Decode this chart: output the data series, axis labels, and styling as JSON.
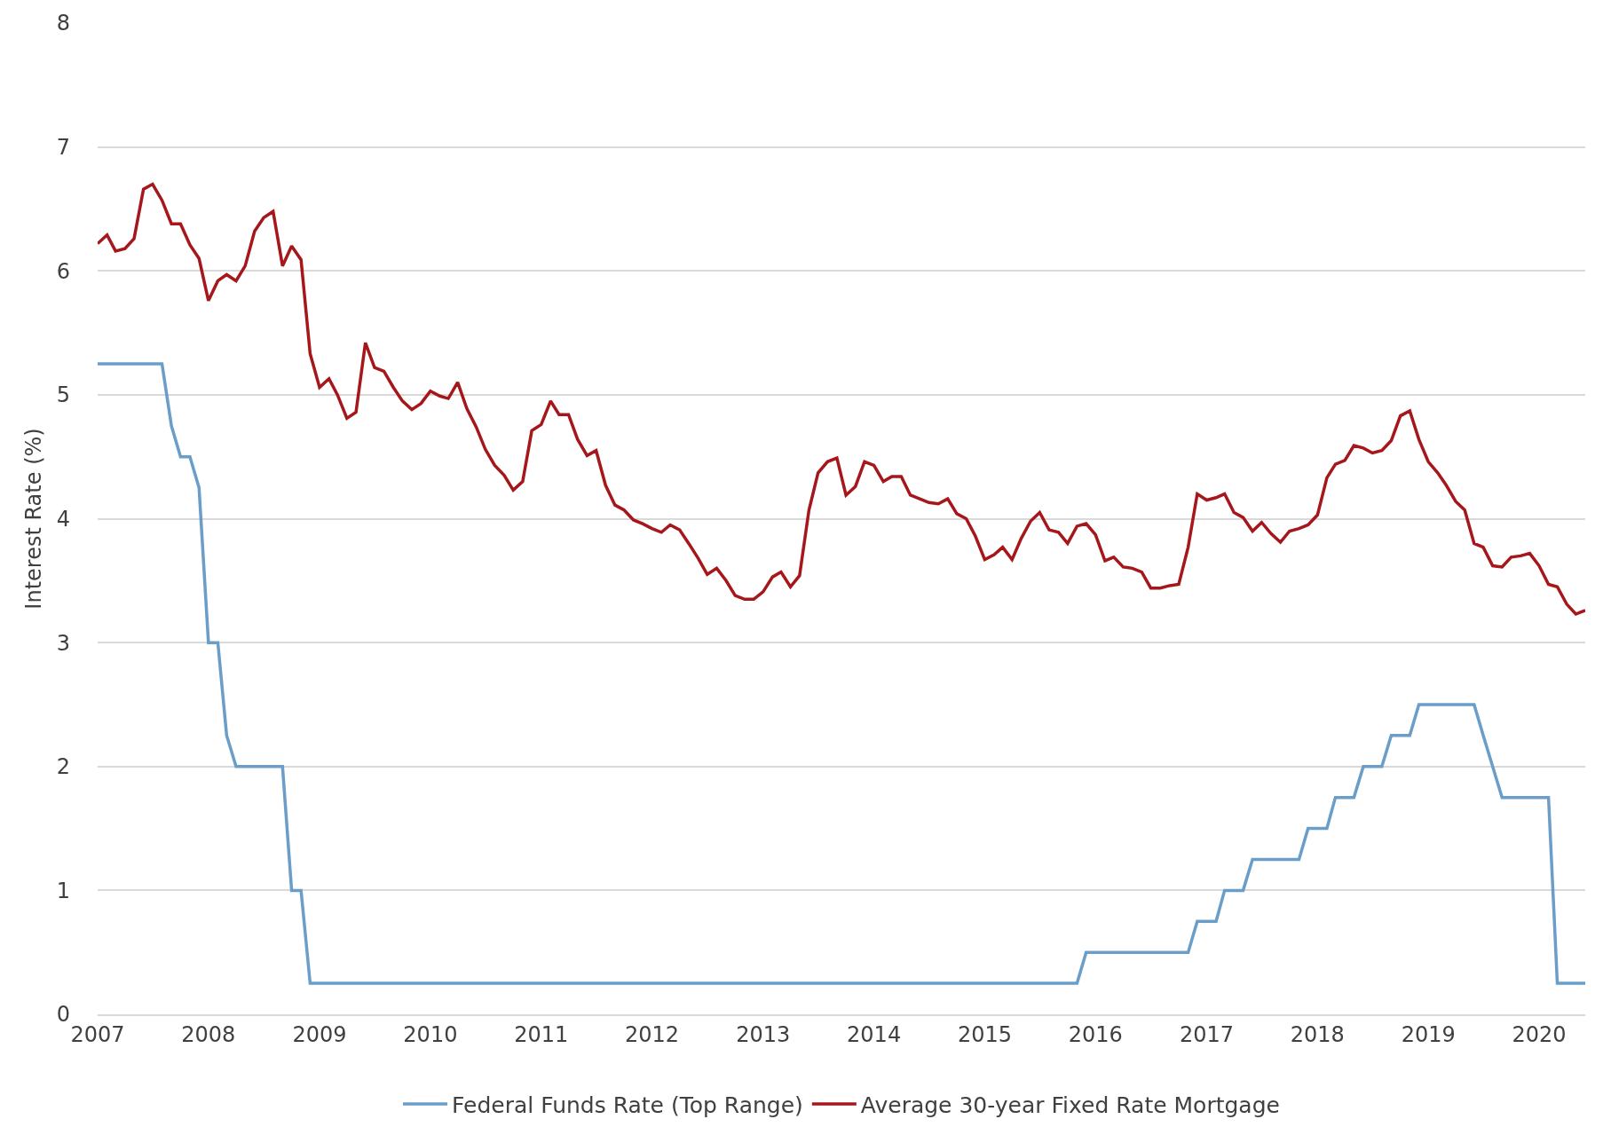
{
  "chart_data": {
    "type": "line",
    "ylabel": "Interest Rate (%)",
    "xlim": [
      "2007-01",
      "2020-06"
    ],
    "ylim": [
      0,
      8
    ],
    "yticks": [
      0,
      1,
      2,
      3,
      4,
      5,
      6,
      7,
      8
    ],
    "xticks": [
      {
        "value": "2007",
        "label": "2007"
      },
      {
        "value": "2008",
        "label": "2008"
      },
      {
        "value": "2009",
        "label": "2009"
      },
      {
        "value": "2010",
        "label": "2010"
      },
      {
        "value": "2011",
        "label": "2011"
      },
      {
        "value": "2012",
        "label": "2012"
      },
      {
        "value": "2013",
        "label": "2013"
      },
      {
        "value": "2014",
        "label": "2014"
      },
      {
        "value": "2015",
        "label": "2015"
      },
      {
        "value": "2016",
        "label": "2016"
      },
      {
        "value": "2017",
        "label": "2017"
      },
      {
        "value": "2018",
        "label": "2018"
      },
      {
        "value": "2019",
        "label": "2019"
      },
      {
        "value": "2020",
        "label": "2020"
      }
    ],
    "grid": "y",
    "legend": "bottom",
    "line_style": "solid",
    "marker": "none",
    "series": [
      {
        "name": "Federal Funds Rate (Top Range)",
        "color": "#6a9ec9",
        "x": [
          "2007-01",
          "2007-08",
          "2007-09",
          "2007-10",
          "2007-11",
          "2007-12",
          "2008-01",
          "2008-02",
          "2008-03",
          "2008-04",
          "2008-09",
          "2008-10",
          "2008-11",
          "2008-12",
          "2015-11",
          "2015-12",
          "2016-11",
          "2016-12",
          "2017-02",
          "2017-03",
          "2017-05",
          "2017-06",
          "2017-11",
          "2017-12",
          "2018-02",
          "2018-03",
          "2018-05",
          "2018-06",
          "2018-08",
          "2018-09",
          "2018-11",
          "2018-12",
          "2019-06",
          "2019-07",
          "2019-08",
          "2019-09",
          "2020-02",
          "2020-03",
          "2020-06"
        ],
        "values": [
          5.25,
          5.25,
          4.75,
          4.5,
          4.5,
          4.25,
          3.0,
          3.0,
          2.25,
          2.0,
          2.0,
          1.0,
          1.0,
          0.25,
          0.25,
          0.5,
          0.5,
          0.75,
          0.75,
          1.0,
          1.0,
          1.25,
          1.25,
          1.5,
          1.5,
          1.75,
          1.75,
          2.0,
          2.0,
          2.25,
          2.25,
          2.5,
          2.5,
          2.25,
          2.0,
          1.75,
          1.75,
          0.25,
          0.25
        ]
      },
      {
        "name": "Average 30-year Fixed Rate Mortgage",
        "color": "#a6171c",
        "x": [
          "2007-01",
          "2007-02",
          "2007-03",
          "2007-04",
          "2007-05",
          "2007-06",
          "2007-07",
          "2007-08",
          "2007-09",
          "2007-10",
          "2007-11",
          "2007-12",
          "2008-01",
          "2008-02",
          "2008-03",
          "2008-04",
          "2008-05",
          "2008-06",
          "2008-07",
          "2008-08",
          "2008-09",
          "2008-10",
          "2008-11",
          "2008-12",
          "2009-01",
          "2009-02",
          "2009-03",
          "2009-04",
          "2009-05",
          "2009-06",
          "2009-07",
          "2009-08",
          "2009-09",
          "2009-10",
          "2009-11",
          "2009-12",
          "2010-01",
          "2010-02",
          "2010-03",
          "2010-04",
          "2010-05",
          "2010-06",
          "2010-07",
          "2010-08",
          "2010-09",
          "2010-10",
          "2010-11",
          "2010-12",
          "2011-01",
          "2011-02",
          "2011-03",
          "2011-04",
          "2011-05",
          "2011-06",
          "2011-07",
          "2011-08",
          "2011-09",
          "2011-10",
          "2011-11",
          "2011-12",
          "2012-01",
          "2012-02",
          "2012-03",
          "2012-04",
          "2012-05",
          "2012-06",
          "2012-07",
          "2012-08",
          "2012-09",
          "2012-10",
          "2012-11",
          "2012-12",
          "2013-01",
          "2013-02",
          "2013-03",
          "2013-04",
          "2013-05",
          "2013-06",
          "2013-07",
          "2013-08",
          "2013-09",
          "2013-10",
          "2013-11",
          "2013-12",
          "2014-01",
          "2014-02",
          "2014-03",
          "2014-04",
          "2014-05",
          "2014-06",
          "2014-07",
          "2014-08",
          "2014-09",
          "2014-10",
          "2014-11",
          "2014-12",
          "2015-01",
          "2015-02",
          "2015-03",
          "2015-04",
          "2015-05",
          "2015-06",
          "2015-07",
          "2015-08",
          "2015-09",
          "2015-10",
          "2015-11",
          "2015-12",
          "2016-01",
          "2016-02",
          "2016-03",
          "2016-04",
          "2016-05",
          "2016-06",
          "2016-07",
          "2016-08",
          "2016-09",
          "2016-10",
          "2016-11",
          "2016-12",
          "2017-01",
          "2017-02",
          "2017-03",
          "2017-04",
          "2017-05",
          "2017-06",
          "2017-07",
          "2017-08",
          "2017-09",
          "2017-10",
          "2017-11",
          "2017-12",
          "2018-01",
          "2018-02",
          "2018-03",
          "2018-04",
          "2018-05",
          "2018-06",
          "2018-07",
          "2018-08",
          "2018-09",
          "2018-10",
          "2018-11",
          "2018-12",
          "2019-01",
          "2019-02",
          "2019-03",
          "2019-04",
          "2019-05",
          "2019-06",
          "2019-07",
          "2019-08",
          "2019-09",
          "2019-10",
          "2019-11",
          "2019-12",
          "2020-01",
          "2020-02",
          "2020-03",
          "2020-04",
          "2020-05",
          "2020-06"
        ],
        "values": [
          6.22,
          6.29,
          6.16,
          6.18,
          6.26,
          6.66,
          6.7,
          6.57,
          6.38,
          6.38,
          6.21,
          6.1,
          5.76,
          5.92,
          5.97,
          5.92,
          6.04,
          6.32,
          6.43,
          6.48,
          6.04,
          6.2,
          6.09,
          5.33,
          5.06,
          5.13,
          5.0,
          4.81,
          4.86,
          5.42,
          5.22,
          5.19,
          5.06,
          4.95,
          4.88,
          4.93,
          5.03,
          4.99,
          4.97,
          5.1,
          4.89,
          4.74,
          4.56,
          4.43,
          4.35,
          4.23,
          4.3,
          4.71,
          4.76,
          4.95,
          4.84,
          4.84,
          4.64,
          4.51,
          4.55,
          4.27,
          4.11,
          4.07,
          3.99,
          3.96,
          3.92,
          3.89,
          3.95,
          3.91,
          3.8,
          3.68,
          3.55,
          3.6,
          3.5,
          3.38,
          3.35,
          3.35,
          3.41,
          3.53,
          3.57,
          3.45,
          3.54,
          4.07,
          4.37,
          4.46,
          4.49,
          4.19,
          4.26,
          4.46,
          4.43,
          4.3,
          4.34,
          4.34,
          4.19,
          4.16,
          4.13,
          4.12,
          4.16,
          4.04,
          4.0,
          3.86,
          3.67,
          3.71,
          3.77,
          3.67,
          3.84,
          3.98,
          4.05,
          3.91,
          3.89,
          3.8,
          3.94,
          3.96,
          3.87,
          3.66,
          3.69,
          3.61,
          3.6,
          3.57,
          3.44,
          3.44,
          3.46,
          3.47,
          3.77,
          4.2,
          4.15,
          4.17,
          4.2,
          4.05,
          4.01,
          3.9,
          3.97,
          3.88,
          3.81,
          3.9,
          3.92,
          3.95,
          4.03,
          4.33,
          4.44,
          4.47,
          4.59,
          4.57,
          4.53,
          4.55,
          4.63,
          4.83,
          4.87,
          4.64,
          4.46,
          4.37,
          4.27,
          4.14,
          4.07,
          3.8,
          3.77,
          3.62,
          3.61,
          3.69,
          3.7,
          3.72,
          3.62,
          3.47,
          3.45,
          3.31,
          3.23,
          3.26
        ]
      }
    ]
  }
}
